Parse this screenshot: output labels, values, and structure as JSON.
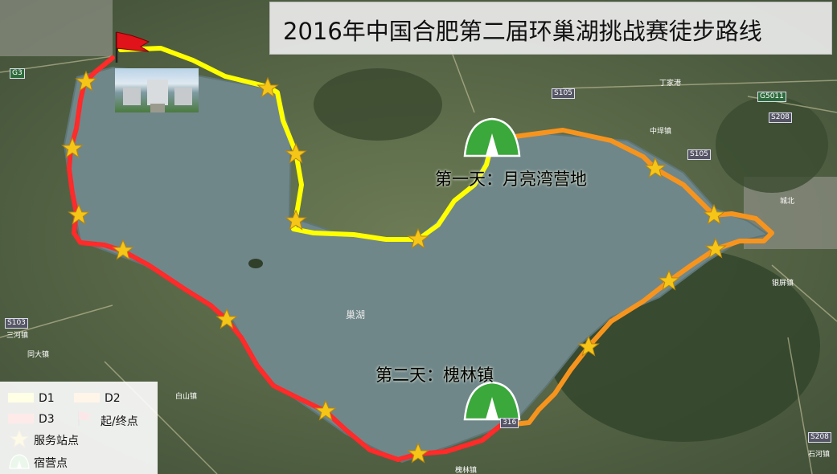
{
  "title": "2016年中国合肥第二届环巢湖挑战赛徒步路线",
  "camps": {
    "day1": "第一天：月亮湾营地",
    "day2": "第二天：槐林镇"
  },
  "lake_label": "巢湖",
  "legend": {
    "d1": "D1",
    "d2": "D2",
    "d3": "D3",
    "start_end": "起/终点",
    "service": "服务站点",
    "camp": "宿营点"
  },
  "colors": {
    "d1": "#ffff00",
    "d2": "#f7941d",
    "d3": "#ff2a2a",
    "star": "#f5c518",
    "tent": "#3aa83a",
    "lake": "#6f8682"
  },
  "road_labels": {
    "g3": "G3",
    "s105a": "S105",
    "s105b": "S105",
    "g5011": "G5011",
    "s208a": "S208",
    "s208b": "S208",
    "s103": "S103",
    "s316": "316"
  },
  "place_labels": {
    "dingjiagang": "丁家港",
    "zhongxiazhen": "中垾镇",
    "chengbei": "城北",
    "sanhezhen": "三河镇",
    "tongdazhen": "同大镇",
    "baishanzhen": "白山镇",
    "huailinzhen": "槐林镇",
    "yinpingzhen": "银屏镇",
    "shihe": "石河镇"
  },
  "icons": [
    "start-flag-icon",
    "service-star-icon",
    "camp-tent-icon"
  ]
}
